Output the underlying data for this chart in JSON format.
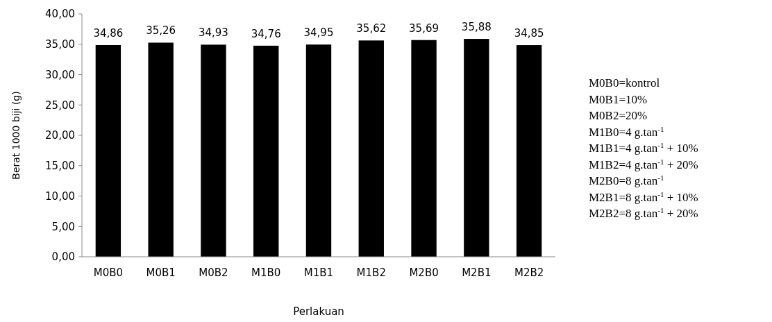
{
  "chart_data": {
    "type": "bar",
    "xlabel": "Perlakuan",
    "ylabel": "Berat 1000 biji (g)",
    "categories": [
      "M0B0",
      "M0B1",
      "M0B2",
      "M1B0",
      "M1B1",
      "M1B2",
      "M2B0",
      "M2B1",
      "M2B2"
    ],
    "values": [
      34.86,
      35.26,
      34.93,
      34.76,
      34.95,
      35.62,
      35.69,
      35.88,
      34.85
    ],
    "value_labels": [
      "34,86",
      "35,26",
      "34,93",
      "34,76",
      "34,95",
      "35,62",
      "35,69",
      "35,88",
      "34,85"
    ],
    "color": "#000000",
    "ylim": [
      0,
      40
    ],
    "yticks": [
      {
        "value": 0,
        "label": "0,00"
      },
      {
        "value": 5,
        "label": "5,00"
      },
      {
        "value": 10,
        "label": "10,00"
      },
      {
        "value": 15,
        "label": "15,00"
      },
      {
        "value": 20,
        "label": "20,00"
      },
      {
        "value": 25,
        "label": "25,00"
      },
      {
        "value": 30,
        "label": "30,00"
      },
      {
        "value": 35,
        "label": "35,00"
      },
      {
        "value": 40,
        "label": "40,00"
      }
    ],
    "grid": false,
    "annotations": [
      "M0B0=kontrol",
      "M0B1=10%",
      "M0B2=20%",
      "M1B0=4 g.tan$^{-1}$",
      "M1B1=4 g.tan$^{-1}$ + 10%",
      "M1B2=4 g.tan$^{-1}$ + 20%",
      "M2B0=8 g.tan$^{-1}$",
      "M2B1=8 g.tan$^{-1}$ + 10%",
      "M2B2=8 g.tan$^{-1}$ + 20%"
    ]
  }
}
